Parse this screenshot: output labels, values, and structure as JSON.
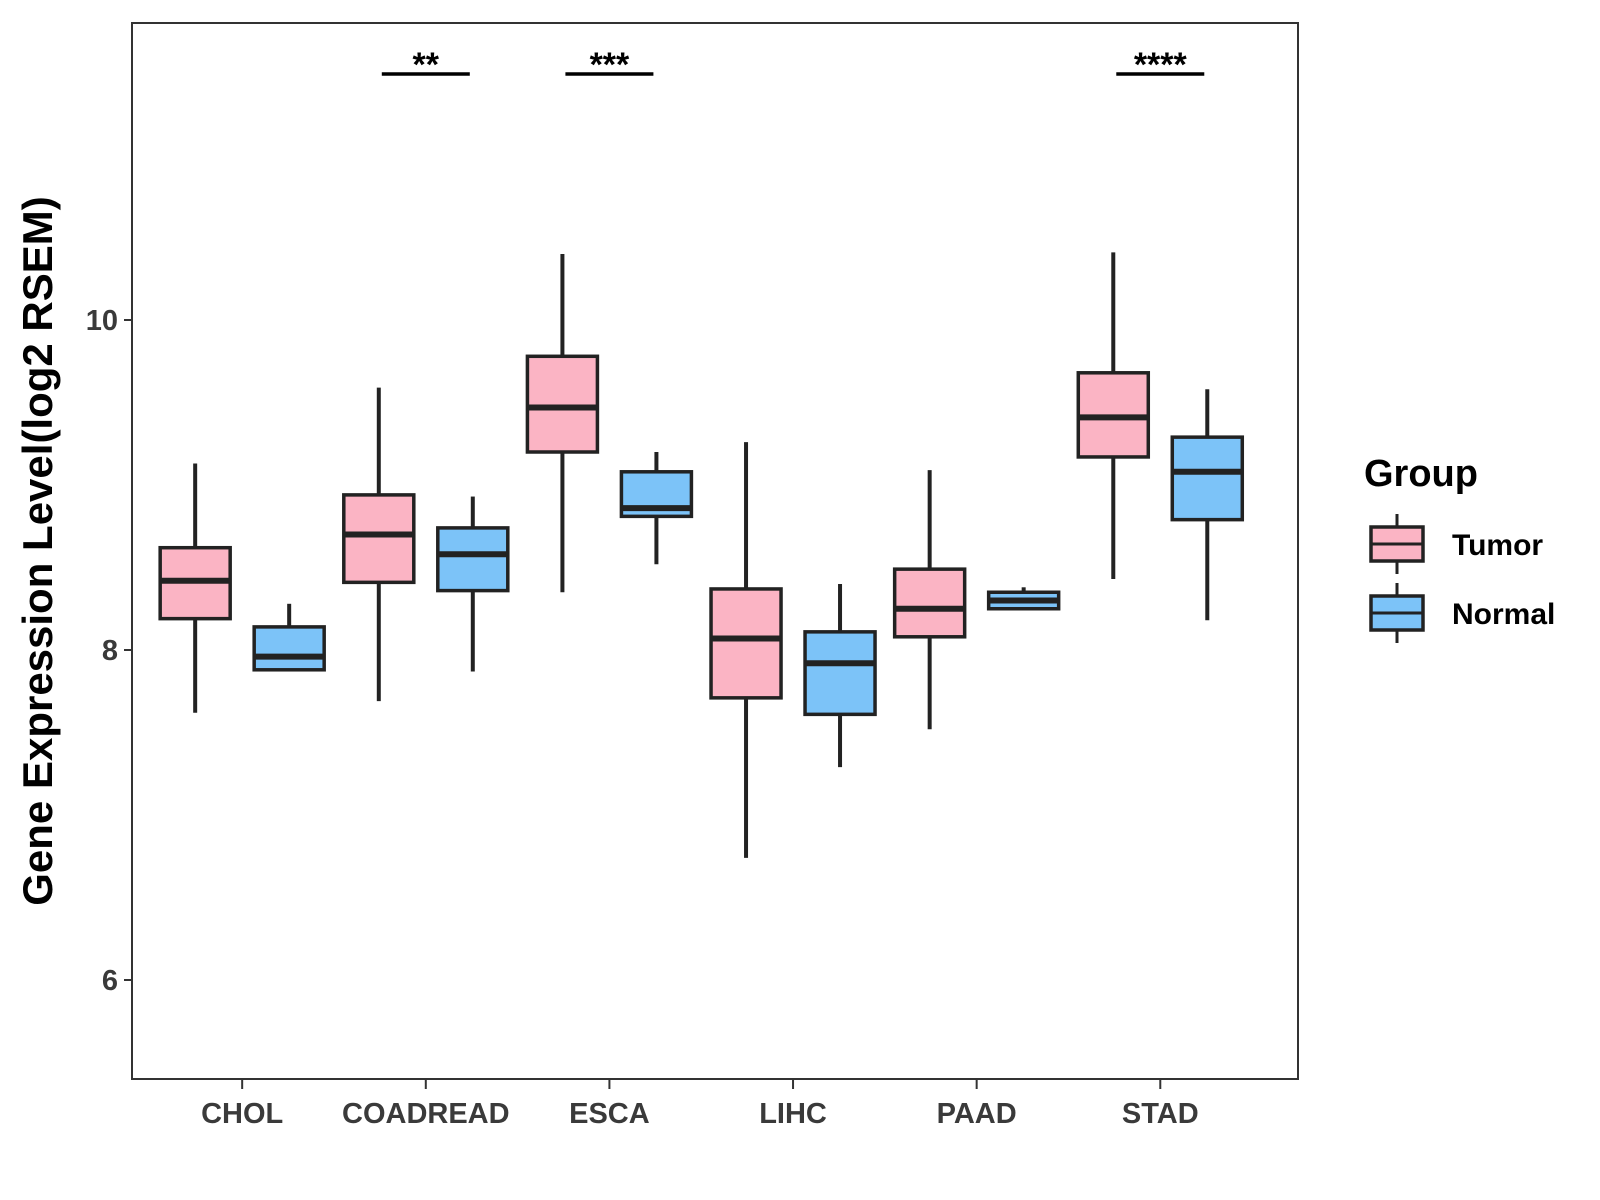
{
  "chart_data": {
    "type": "boxplot",
    "title": "",
    "xlabel": "",
    "ylabel": "Gene Expression Level(log2 RSEM)",
    "ylim": [
      5.4,
      11.8
    ],
    "yticks": [
      6,
      8,
      10
    ],
    "categories": [
      "CHOL",
      "COADREAD",
      "ESCA",
      "LIHC",
      "PAAD",
      "STAD"
    ],
    "legend": {
      "title": "Group",
      "position": "right",
      "entries": [
        {
          "name": "Tumor",
          "color": "#FBB4C4"
        },
        {
          "name": "Normal",
          "color": "#7CC3F8"
        }
      ]
    },
    "series": [
      {
        "name": "Tumor",
        "color": "#FBB4C4",
        "boxes": [
          {
            "category": "CHOL",
            "whisker_low": 7.62,
            "q1": 8.19,
            "median": 8.42,
            "q3": 8.62,
            "whisker_high": 9.13
          },
          {
            "category": "COADREAD",
            "whisker_low": 7.69,
            "q1": 8.41,
            "median": 8.7,
            "q3": 8.94,
            "whisker_high": 9.59
          },
          {
            "category": "ESCA",
            "whisker_low": 8.35,
            "q1": 9.2,
            "median": 9.47,
            "q3": 9.78,
            "whisker_high": 10.4
          },
          {
            "category": "LIHC",
            "whisker_low": 6.74,
            "q1": 7.71,
            "median": 8.07,
            "q3": 8.37,
            "whisker_high": 9.26
          },
          {
            "category": "PAAD",
            "whisker_low": 7.52,
            "q1": 8.08,
            "median": 8.25,
            "q3": 8.49,
            "whisker_high": 9.09
          },
          {
            "category": "STAD",
            "whisker_low": 8.43,
            "q1": 9.17,
            "median": 9.41,
            "q3": 9.68,
            "whisker_high": 10.41
          }
        ]
      },
      {
        "name": "Normal",
        "color": "#7CC3F8",
        "boxes": [
          {
            "category": "CHOL",
            "whisker_low": 7.88,
            "q1": 7.88,
            "median": 7.96,
            "q3": 8.14,
            "whisker_high": 8.28
          },
          {
            "category": "COADREAD",
            "whisker_low": 7.87,
            "q1": 8.36,
            "median": 8.58,
            "q3": 8.74,
            "whisker_high": 8.93
          },
          {
            "category": "ESCA",
            "whisker_low": 8.52,
            "q1": 8.81,
            "median": 8.86,
            "q3": 9.08,
            "whisker_high": 9.2
          },
          {
            "category": "LIHC",
            "whisker_low": 7.29,
            "q1": 7.61,
            "median": 7.92,
            "q3": 8.11,
            "whisker_high": 8.4
          },
          {
            "category": "PAAD",
            "whisker_low": 8.25,
            "q1": 8.25,
            "median": 8.3,
            "q3": 8.35,
            "whisker_high": 8.38
          },
          {
            "category": "STAD",
            "whisker_low": 8.18,
            "q1": 8.79,
            "median": 9.08,
            "q3": 9.29,
            "whisker_high": 9.58
          }
        ]
      }
    ],
    "annotations": [
      {
        "category": "COADREAD",
        "label": "**"
      },
      {
        "category": "ESCA",
        "label": "***"
      },
      {
        "category": "STAD",
        "label": "****"
      }
    ]
  }
}
